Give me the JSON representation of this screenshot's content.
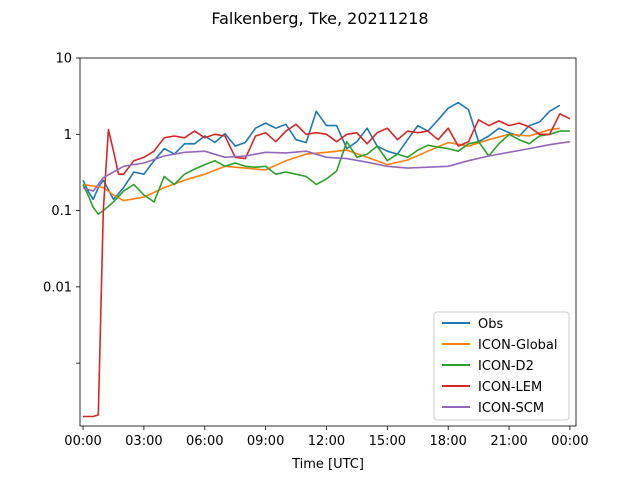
{
  "chart_data": {
    "type": "line",
    "title": "Falkenberg, Tke, 20211218",
    "xlabel": "Time [UTC]",
    "ylabel": "",
    "yscale": "log",
    "ylim": [
      0.00015,
      10
    ],
    "xlim": [
      -0.15,
      24.3
    ],
    "xticks": [
      0,
      3,
      6,
      9,
      12,
      15,
      18,
      21,
      24
    ],
    "xtick_labels": [
      "00:00",
      "03:00",
      "06:00",
      "09:00",
      "12:00",
      "15:00",
      "18:00",
      "21:00",
      "00:00"
    ],
    "yticks": [
      0.001,
      0.01,
      0.1,
      1,
      10
    ],
    "ytick_labels": [
      "",
      "0.01",
      "0.1",
      "1",
      "10"
    ],
    "grid": false,
    "legend": "lower-right",
    "series": [
      {
        "name": "Obs",
        "color": "#1f77b4",
        "x": [
          0,
          0.25,
          0.5,
          0.75,
          1.0,
          1.5,
          2.0,
          2.5,
          3.0,
          3.5,
          4.0,
          4.5,
          5.0,
          5.5,
          6.0,
          6.5,
          7.0,
          7.5,
          8.0,
          8.5,
          9.0,
          9.5,
          10.0,
          10.5,
          11.0,
          11.5,
          12.0,
          12.5,
          13.0,
          13.5,
          14.0,
          14.5,
          15.0,
          15.5,
          16.0,
          16.5,
          17.0,
          17.5,
          18.0,
          18.5,
          19.0,
          19.5,
          20.0,
          20.5,
          21.0,
          21.5,
          22.0,
          22.5,
          23.0,
          23.5,
          24.0
        ],
        "values": [
          0.25,
          0.18,
          0.14,
          0.2,
          0.25,
          0.14,
          0.2,
          0.32,
          0.3,
          0.45,
          0.65,
          0.55,
          0.75,
          0.75,
          0.95,
          0.78,
          1.02,
          0.7,
          0.78,
          1.2,
          1.4,
          1.2,
          1.35,
          0.85,
          0.78,
          2.0,
          1.3,
          1.3,
          0.65,
          0.8,
          1.2,
          0.7,
          0.6,
          0.55,
          0.85,
          1.3,
          1.1,
          1.55,
          2.2,
          2.6,
          2.1,
          0.8,
          0.95,
          1.2,
          1.05,
          0.95,
          1.3,
          1.45,
          2.0,
          2.4,
          null
        ]
      },
      {
        "name": "ICON-Global",
        "color": "#ff7f0e",
        "x": [
          0,
          0.5,
          1.0,
          1.5,
          2.0,
          3.0,
          4.0,
          5.0,
          6.0,
          7.0,
          8.0,
          9.0,
          10.0,
          11.0,
          12.0,
          13.0,
          14.0,
          15.0,
          16.0,
          17.0,
          18.0,
          19.0,
          20.0,
          21.0,
          22.0,
          23.0,
          23.5
        ],
        "values": [
          0.22,
          0.21,
          0.2,
          0.16,
          0.135,
          0.15,
          0.2,
          0.25,
          0.3,
          0.38,
          0.36,
          0.34,
          0.45,
          0.55,
          0.58,
          0.62,
          0.5,
          0.4,
          0.46,
          0.6,
          0.78,
          0.7,
          0.85,
          1.0,
          0.95,
          1.15,
          1.2
        ]
      },
      {
        "name": "ICON-D2",
        "color": "#2ca02c",
        "x": [
          0,
          0.25,
          0.5,
          0.75,
          1.0,
          1.5,
          2.0,
          2.5,
          3.0,
          3.5,
          4.0,
          4.5,
          5.0,
          5.5,
          6.0,
          6.5,
          7.0,
          7.5,
          8.0,
          8.5,
          9.0,
          9.5,
          10.0,
          10.5,
          11.0,
          11.5,
          12.0,
          12.5,
          13.0,
          13.5,
          14.0,
          14.5,
          15.0,
          15.5,
          16.0,
          16.5,
          17.0,
          17.5,
          18.0,
          18.5,
          19.0,
          19.5,
          20.0,
          20.5,
          21.0,
          21.5,
          22.0,
          22.5,
          23.0,
          23.5,
          24.0
        ],
        "values": [
          0.22,
          0.16,
          0.11,
          0.09,
          0.1,
          0.13,
          0.18,
          0.22,
          0.16,
          0.13,
          0.28,
          0.22,
          0.3,
          0.35,
          0.4,
          0.45,
          0.38,
          0.42,
          0.38,
          0.37,
          0.38,
          0.3,
          0.32,
          0.3,
          0.28,
          0.22,
          0.26,
          0.33,
          0.8,
          0.5,
          0.55,
          0.7,
          0.45,
          0.55,
          0.5,
          0.62,
          0.72,
          0.68,
          0.65,
          0.6,
          0.75,
          0.8,
          0.52,
          0.75,
          1.0,
          0.85,
          0.75,
          0.95,
          1.0,
          1.1,
          1.1
        ]
      },
      {
        "name": "ICON-LEM",
        "color": "#d62728",
        "x": [
          0,
          0.5,
          0.75,
          1.0,
          1.25,
          1.5,
          1.75,
          2.0,
          2.5,
          3.0,
          3.5,
          4.0,
          4.5,
          5.0,
          5.5,
          6.0,
          6.5,
          7.0,
          7.5,
          8.0,
          8.5,
          9.0,
          9.5,
          10.0,
          10.5,
          11.0,
          11.5,
          12.0,
          12.5,
          13.0,
          13.5,
          14.0,
          14.5,
          15.0,
          15.5,
          16.0,
          16.5,
          17.0,
          17.5,
          18.0,
          18.5,
          19.0,
          19.5,
          20.0,
          20.5,
          21.0,
          21.5,
          22.0,
          22.5,
          23.0,
          23.5,
          24.0
        ],
        "values": [
          0.0002,
          0.0002,
          0.00021,
          0.1,
          1.15,
          0.6,
          0.3,
          0.3,
          0.45,
          0.5,
          0.6,
          0.9,
          0.95,
          0.9,
          1.1,
          0.9,
          1.0,
          0.95,
          0.5,
          0.48,
          0.95,
          1.05,
          0.8,
          1.1,
          1.35,
          1.0,
          1.05,
          1.0,
          0.8,
          1.0,
          1.05,
          0.75,
          1.05,
          1.2,
          0.85,
          1.1,
          1.05,
          1.1,
          0.85,
          1.2,
          0.7,
          0.8,
          1.55,
          1.3,
          1.5,
          1.3,
          1.4,
          1.25,
          1.0,
          1.0,
          1.85,
          1.6
        ]
      },
      {
        "name": "ICON-SCM",
        "color": "#9467bd",
        "x": [
          0,
          0.5,
          1.0,
          1.5,
          2.0,
          3.0,
          4.0,
          5.0,
          6.0,
          7.0,
          8.0,
          9.0,
          10.0,
          11.0,
          12.0,
          13.0,
          14.0,
          15.0,
          16.0,
          17.0,
          18.0,
          19.0,
          20.0,
          21.0,
          22.0,
          23.0,
          24.0
        ],
        "values": [
          0.2,
          0.18,
          0.27,
          0.32,
          0.38,
          0.42,
          0.52,
          0.58,
          0.6,
          0.5,
          0.52,
          0.58,
          0.57,
          0.6,
          0.5,
          0.48,
          0.43,
          0.38,
          0.36,
          0.37,
          0.38,
          0.45,
          0.52,
          0.58,
          0.65,
          0.73,
          0.8
        ]
      }
    ]
  }
}
